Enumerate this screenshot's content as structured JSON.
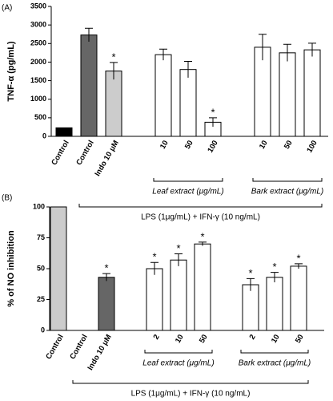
{
  "chart_data": [
    {
      "type": "bar",
      "panel_label": "(A)",
      "y_label": "TNF-α (pg/mL)",
      "categories": [
        "Control",
        "Control",
        "Indo 10 μM",
        null,
        "10",
        "50",
        "100",
        null,
        "10",
        "50",
        "100"
      ],
      "values": [
        230,
        2730,
        1760,
        null,
        2200,
        1800,
        380,
        null,
        2400,
        2250,
        2330
      ],
      "errors": [
        null,
        180,
        230,
        null,
        150,
        220,
        120,
        null,
        350,
        230,
        180
      ],
      "colors": [
        "#000000",
        "#666666",
        "#cccccc",
        null,
        "#ffffff",
        "#ffffff",
        "#ffffff",
        null,
        "#ffffff",
        "#ffffff",
        "#ffffff"
      ],
      "significant": [
        false,
        false,
        true,
        false,
        false,
        false,
        true,
        false,
        false,
        false,
        false
      ],
      "sig_label": "*",
      "group_labels": [
        null,
        "Leaf extract (μg/mL)",
        "Bark extract (μg/mL)"
      ],
      "treatment_label": "LPS (1μg/mL) + IFN-γ (10 ng/mL)",
      "ylim": [
        0,
        3500
      ],
      "yticks": [
        0,
        500,
        1000,
        1500,
        2000,
        2500,
        3000,
        3500
      ]
    },
    {
      "type": "bar",
      "panel_label": "(B)",
      "y_label": "% of NO inhibition",
      "categories": [
        "Control",
        "Control",
        "Indo 10 μM",
        null,
        "2",
        "10",
        "50",
        null,
        "2",
        "10",
        "50"
      ],
      "values": [
        100,
        0,
        43,
        null,
        50,
        57,
        70,
        null,
        37,
        43,
        52
      ],
      "errors": [
        null,
        null,
        3,
        null,
        5,
        5,
        1.5,
        null,
        5,
        4,
        2
      ],
      "colors": [
        "#cccccc",
        "#ffffff",
        "#666666",
        null,
        "#ffffff",
        "#ffffff",
        "#ffffff",
        null,
        "#ffffff",
        "#ffffff",
        "#ffffff"
      ],
      "significant": [
        false,
        false,
        true,
        false,
        true,
        true,
        true,
        false,
        true,
        true,
        true
      ],
      "sig_label": "*",
      "group_labels": [
        null,
        "Leaf extract (μg/mL)",
        "Bark extract (μg/mL)"
      ],
      "treatment_label": "LPS (1μg/mL) + IFN-γ (10 ng/mL)",
      "ylim": [
        0,
        100
      ],
      "yticks": [
        0,
        25,
        50,
        75,
        100
      ]
    }
  ]
}
